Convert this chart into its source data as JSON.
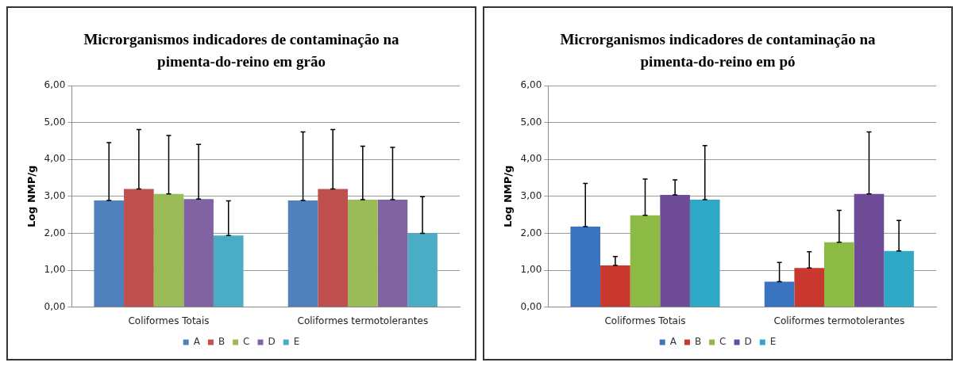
{
  "chart_data": [
    {
      "type": "bar",
      "title": "Microrganismos indicadores de contaminação na pimenta-do-reino em grão",
      "ylabel": "Log NMP/g",
      "categories": [
        "Coliformes Totais",
        "Coliformes termotolerantes"
      ],
      "ylim": [
        0,
        6
      ],
      "yticks": [
        {
          "value": 0,
          "label": "0,00"
        },
        {
          "value": 1,
          "label": "1,00"
        },
        {
          "value": 2,
          "label": "2,00"
        },
        {
          "value": 3,
          "label": "3,00"
        },
        {
          "value": 4,
          "label": "4,00"
        },
        {
          "value": 5,
          "label": "5,00"
        },
        {
          "value": 6,
          "label": "6,00"
        }
      ],
      "grid": "y",
      "legend": "bottom",
      "series": [
        {
          "name": "A",
          "color": "#4f81bd",
          "values": [
            2.89,
            2.89
          ],
          "errors": [
            [
              2.89,
              4.46
            ],
            [
              2.89,
              4.75
            ]
          ]
        },
        {
          "name": "B",
          "color": "#c0504d",
          "values": [
            3.2,
            3.2
          ],
          "errors": [
            [
              3.2,
              4.81
            ],
            [
              3.2,
              4.81
            ]
          ]
        },
        {
          "name": "C",
          "color": "#9bbb59",
          "values": [
            3.07,
            2.91
          ],
          "errors": [
            [
              3.07,
              4.65
            ],
            [
              2.91,
              4.36
            ]
          ]
        },
        {
          "name": "D",
          "color": "#8064a2",
          "values": [
            2.93,
            2.91
          ],
          "errors": [
            [
              2.93,
              4.41
            ],
            [
              2.91,
              4.33
            ]
          ]
        },
        {
          "name": "E",
          "color": "#4bacc6",
          "values": [
            1.94,
            2.0
          ],
          "errors": [
            [
              1.94,
              2.88
            ],
            [
              2.0,
              2.99
            ]
          ]
        }
      ]
    },
    {
      "type": "bar",
      "title": "Microrganismos indicadores de contaminação na pimenta-do-reino em pó",
      "ylabel": "Log NMP/g",
      "categories": [
        "Coliformes Totais",
        "Coliformes termotolerantes"
      ],
      "ylim": [
        0,
        6
      ],
      "yticks": [
        {
          "value": 0,
          "label": "0,00"
        },
        {
          "value": 1,
          "label": "1,00"
        },
        {
          "value": 2,
          "label": "2,00"
        },
        {
          "value": 3,
          "label": "3,00"
        },
        {
          "value": 4,
          "label": "4,00"
        },
        {
          "value": 5,
          "label": "5,00"
        },
        {
          "value": 6,
          "label": "6,00"
        }
      ],
      "grid": "y",
      "legend": "bottom",
      "series": [
        {
          "name": "A",
          "color": "#3a73c0",
          "values": [
            2.18,
            0.69
          ],
          "errors": [
            [
              2.18,
              3.35
            ],
            [
              0.69,
              1.21
            ]
          ]
        },
        {
          "name": "B",
          "color": "#c9382f",
          "values": [
            1.13,
            1.06
          ],
          "errors": [
            [
              1.13,
              1.37
            ],
            [
              1.06,
              1.5
            ]
          ]
        },
        {
          "name": "C",
          "color": "#8cba44",
          "values": [
            2.49,
            1.76
          ],
          "errors": [
            [
              2.49,
              3.47
            ],
            [
              1.76,
              2.62
            ]
          ]
        },
        {
          "name": "D",
          "color": "#6e4c97",
          "values": [
            3.04,
            3.07
          ],
          "errors": [
            [
              3.04,
              3.45
            ],
            [
              3.07,
              4.75
            ]
          ]
        },
        {
          "name": "E",
          "color": "#2fa8c6",
          "values": [
            2.91,
            1.52
          ],
          "errors": [
            [
              2.91,
              4.38
            ],
            [
              1.52,
              2.35
            ]
          ]
        }
      ]
    }
  ]
}
